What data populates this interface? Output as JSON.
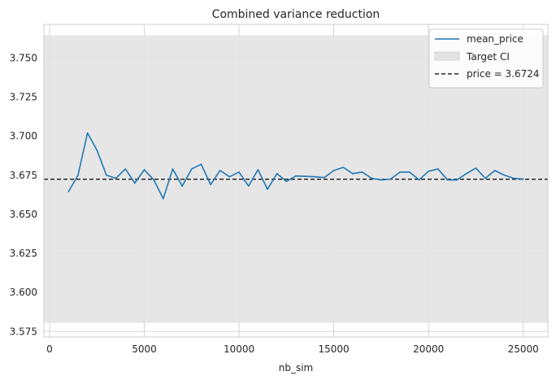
{
  "chart_data": {
    "type": "line",
    "title": "Combined variance reduction",
    "xlabel": "nb_sim",
    "ylabel": "",
    "xlim": [
      -300,
      26300
    ],
    "ylim": [
      3.5715,
      3.7715
    ],
    "grid": true,
    "legend_position": "top-right",
    "x_ticks": [
      0,
      5000,
      10000,
      15000,
      20000,
      25000
    ],
    "x_tick_labels": [
      "0",
      "5000",
      "10000",
      "15000",
      "20000",
      "25000"
    ],
    "y_ticks": [
      3.575,
      3.6,
      3.625,
      3.65,
      3.675,
      3.7,
      3.725,
      3.75
    ],
    "y_tick_labels": [
      "3.575",
      "3.600",
      "3.625",
      "3.650",
      "3.675",
      "3.700",
      "3.725",
      "3.750"
    ],
    "target_ci": {
      "name": "Target CI",
      "lower": 3.5805,
      "upper": 3.7645,
      "color": "#e3e3e3"
    },
    "reference_line": {
      "name": "price = 3.6724",
      "value": 3.6724,
      "color": "#000000",
      "style": "dashed"
    },
    "series": [
      {
        "name": "mean_price",
        "color": "#1f77b4",
        "x": [
          1000,
          1500,
          2000,
          2500,
          3000,
          3500,
          4000,
          4500,
          5000,
          5500,
          6000,
          6500,
          7000,
          7500,
          8000,
          8500,
          9000,
          9500,
          10000,
          10500,
          11000,
          11500,
          12000,
          12500,
          13000,
          14000,
          14500,
          15000,
          15500,
          16000,
          16500,
          17000,
          17500,
          18000,
          18500,
          19000,
          19500,
          20000,
          20500,
          21000,
          21500,
          22000,
          22500,
          23000,
          23500,
          24000,
          24500,
          25000
        ],
        "y": [
          3.6645,
          3.675,
          3.702,
          3.691,
          3.675,
          3.673,
          3.679,
          3.67,
          3.6785,
          3.672,
          3.66,
          3.679,
          3.668,
          3.679,
          3.682,
          3.669,
          3.678,
          3.674,
          3.677,
          3.668,
          3.6785,
          3.666,
          3.676,
          3.671,
          3.6745,
          3.674,
          3.6735,
          3.678,
          3.68,
          3.676,
          3.677,
          3.673,
          3.672,
          3.6725,
          3.677,
          3.677,
          3.672,
          3.6775,
          3.679,
          3.672,
          3.672,
          3.676,
          3.6795,
          3.673,
          3.678,
          3.675,
          3.673,
          3.6725
        ]
      }
    ]
  }
}
